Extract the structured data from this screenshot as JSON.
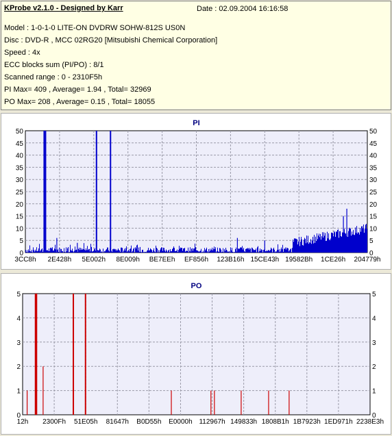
{
  "info": {
    "title": "KProbe v2.1.0 - Designed by Karr",
    "date": "Date : 02.09.2004 16:16:58",
    "lines": [
      "Model : 1-0-1-0 LITE-ON DVDRW SOHW-812S  US0N",
      "Disc : DVD-R , MCC 02RG20   [Mitsubishi Chemical Corporation]",
      "Speed : 4x",
      "ECC blocks sum (PI/PO) : 8/1",
      "Scanned range : 0 - 2310F5h",
      "PI Max= 409 , Average= 1.94 , Total= 32969",
      "PO Max= 208 , Average= 0.15 , Total= 18055"
    ]
  },
  "colors": {
    "pi": "#0000cc",
    "po": "#cc0000",
    "plot_bg": "#eeeefa",
    "grid": "#9a9aa8",
    "title": "#000080"
  },
  "chart_data": [
    {
      "type": "bar",
      "title": "PI",
      "ylim": [
        0,
        50
      ],
      "yticks": [
        "0",
        "5",
        "10",
        "15",
        "20",
        "25",
        "30",
        "35",
        "40",
        "45",
        "50"
      ],
      "xticks": [
        "3CC8h",
        "2E428h",
        "5E002h",
        "8E009h",
        "BE7EEh",
        "EF856h",
        "123B16h",
        "15CE43h",
        "19582Bh",
        "1CE26h",
        "204779h"
      ],
      "xrange": [
        0,
        1
      ],
      "spikes": [
        [
          0.055,
          50
        ],
        [
          0.059,
          50
        ],
        [
          0.208,
          50
        ],
        [
          0.249,
          50
        ],
        [
          0.092,
          6
        ],
        [
          0.152,
          4
        ],
        [
          0.62,
          6
        ],
        [
          0.7,
          5
        ],
        [
          0.94,
          18
        ],
        [
          0.93,
          15
        ]
      ],
      "baseline": "noise 0-4, rising to 5-13 toward end"
    },
    {
      "type": "bar",
      "title": "PO",
      "ylim": [
        0,
        5
      ],
      "yticks": [
        "0",
        "1",
        "2",
        "3",
        "4",
        "5"
      ],
      "xticks": [
        "12h",
        "2300Fh",
        "51E05h",
        "81647h",
        "B0D55h",
        "E0000h",
        "112967h",
        "149833h",
        "1808B1h",
        "1B7923h",
        "1ED971h",
        "2238E3h"
      ],
      "xrange": [
        0,
        1
      ],
      "spikes": [
        [
          0.013,
          1
        ],
        [
          0.037,
          5
        ],
        [
          0.04,
          5
        ],
        [
          0.059,
          2
        ],
        [
          0.146,
          5
        ],
        [
          0.181,
          5
        ],
        [
          0.428,
          1
        ],
        [
          0.542,
          1
        ],
        [
          0.552,
          1
        ],
        [
          0.629,
          1
        ],
        [
          0.708,
          1
        ],
        [
          0.767,
          1
        ]
      ]
    }
  ]
}
